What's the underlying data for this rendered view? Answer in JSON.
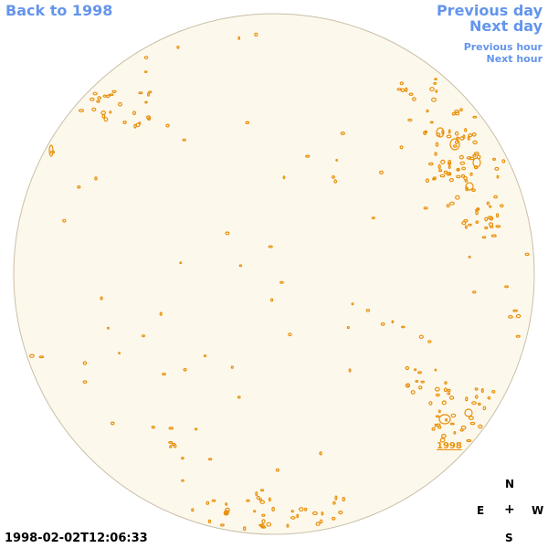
{
  "nav": {
    "back": "Back to 1998",
    "previous_day": "Previous day",
    "next_day": "Next day",
    "previous_hour": "Previous hour",
    "next_hour": "Next hour"
  },
  "timestamp": "1998-02-02T12:06:33",
  "compass": {
    "north": "N",
    "east": "E",
    "center": "+",
    "west": "W",
    "south": "S"
  },
  "region_label": "1998",
  "colors": {
    "disk_fill": "#FDF8EC",
    "disk_stroke": "#C9BFA8",
    "contour": "#E8900A",
    "link": "#6495ED"
  }
}
